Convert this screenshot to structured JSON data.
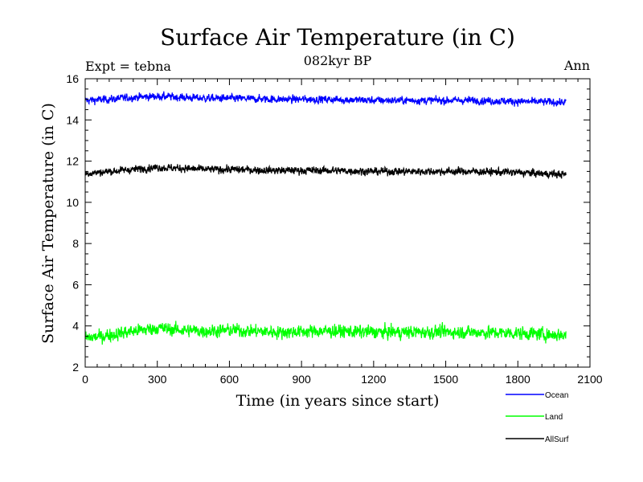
{
  "chart_data": {
    "type": "line",
    "title": "Surface Air Temperature (in C)",
    "subtitle": "082kyr BP",
    "left_label": "Expt = tebna",
    "right_label": "Ann",
    "xlabel": "Time (in years since start)",
    "ylabel": "Surface Air Temperature (in C)",
    "xlim": [
      0,
      2100
    ],
    "ylim": [
      2,
      16
    ],
    "xticks": [
      0,
      300,
      600,
      900,
      1200,
      1500,
      1800,
      2100
    ],
    "yticks": [
      2,
      4,
      6,
      8,
      10,
      12,
      14,
      16
    ],
    "grid": false,
    "legend_position": "bottom-right",
    "series": [
      {
        "name": "Ocean",
        "color": "#0000ff",
        "mean": 15.0,
        "noise": 0.13,
        "x": [
          0,
          100,
          200,
          300,
          400,
          500,
          600,
          800,
          1000,
          1200,
          1400,
          1600,
          1800,
          2000
        ],
        "trend": [
          14.95,
          15.0,
          15.1,
          15.15,
          15.1,
          15.05,
          15.05,
          15.0,
          15.0,
          14.95,
          14.95,
          14.95,
          14.9,
          14.85
        ]
      },
      {
        "name": "Land",
        "color": "#00ff00",
        "mean": 3.7,
        "noise": 0.22,
        "x": [
          0,
          100,
          200,
          300,
          400,
          500,
          600,
          800,
          1000,
          1200,
          1400,
          1600,
          1800,
          2000
        ],
        "trend": [
          3.4,
          3.55,
          3.75,
          3.9,
          3.8,
          3.75,
          3.8,
          3.7,
          3.75,
          3.7,
          3.7,
          3.7,
          3.65,
          3.55
        ]
      },
      {
        "name": "AllSurf",
        "color": "#000000",
        "mean": 11.5,
        "noise": 0.13,
        "x": [
          0,
          100,
          200,
          300,
          400,
          500,
          600,
          800,
          1000,
          1200,
          1400,
          1600,
          1800,
          2000
        ],
        "trend": [
          11.4,
          11.5,
          11.6,
          11.7,
          11.65,
          11.6,
          11.6,
          11.55,
          11.55,
          11.5,
          11.5,
          11.5,
          11.45,
          11.35
        ]
      }
    ]
  }
}
